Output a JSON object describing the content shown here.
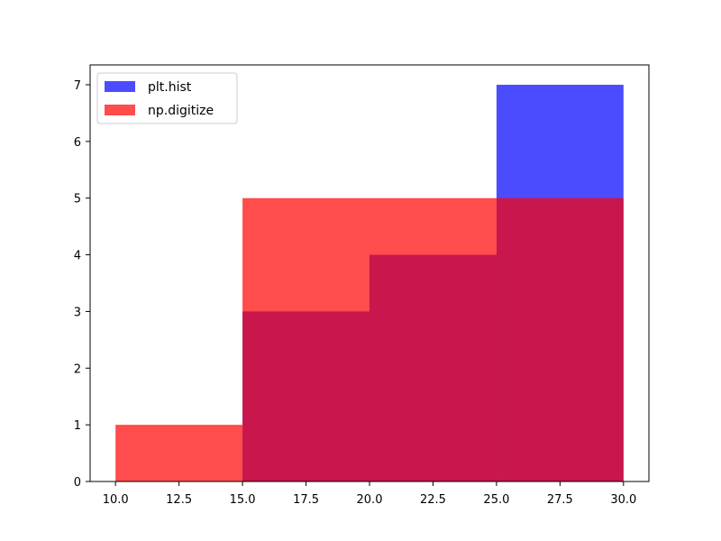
{
  "chart_data": {
    "type": "bar",
    "bin_edges": [
      10.0,
      15.0,
      20.0,
      25.0,
      30.0
    ],
    "series": [
      {
        "name": "plt.hist",
        "values": [
          0,
          3,
          4,
          7
        ],
        "color": "#0000ff",
        "alpha": 0.7
      },
      {
        "name": "np.digitize",
        "values": [
          1,
          5,
          5,
          5
        ],
        "color": "#ff0000",
        "alpha": 0.7
      }
    ],
    "title": "",
    "xlabel": "",
    "ylabel": "",
    "xlim": [
      9.0,
      31.0
    ],
    "ylim": [
      0,
      7.35
    ],
    "x_ticks": [
      "10.0",
      "12.5",
      "15.0",
      "17.5",
      "20.0",
      "22.5",
      "25.0",
      "27.5",
      "30.0"
    ],
    "y_ticks": [
      "0",
      "1",
      "2",
      "3",
      "4",
      "5",
      "6",
      "7"
    ],
    "grid": false,
    "legend_position": "top-left"
  }
}
